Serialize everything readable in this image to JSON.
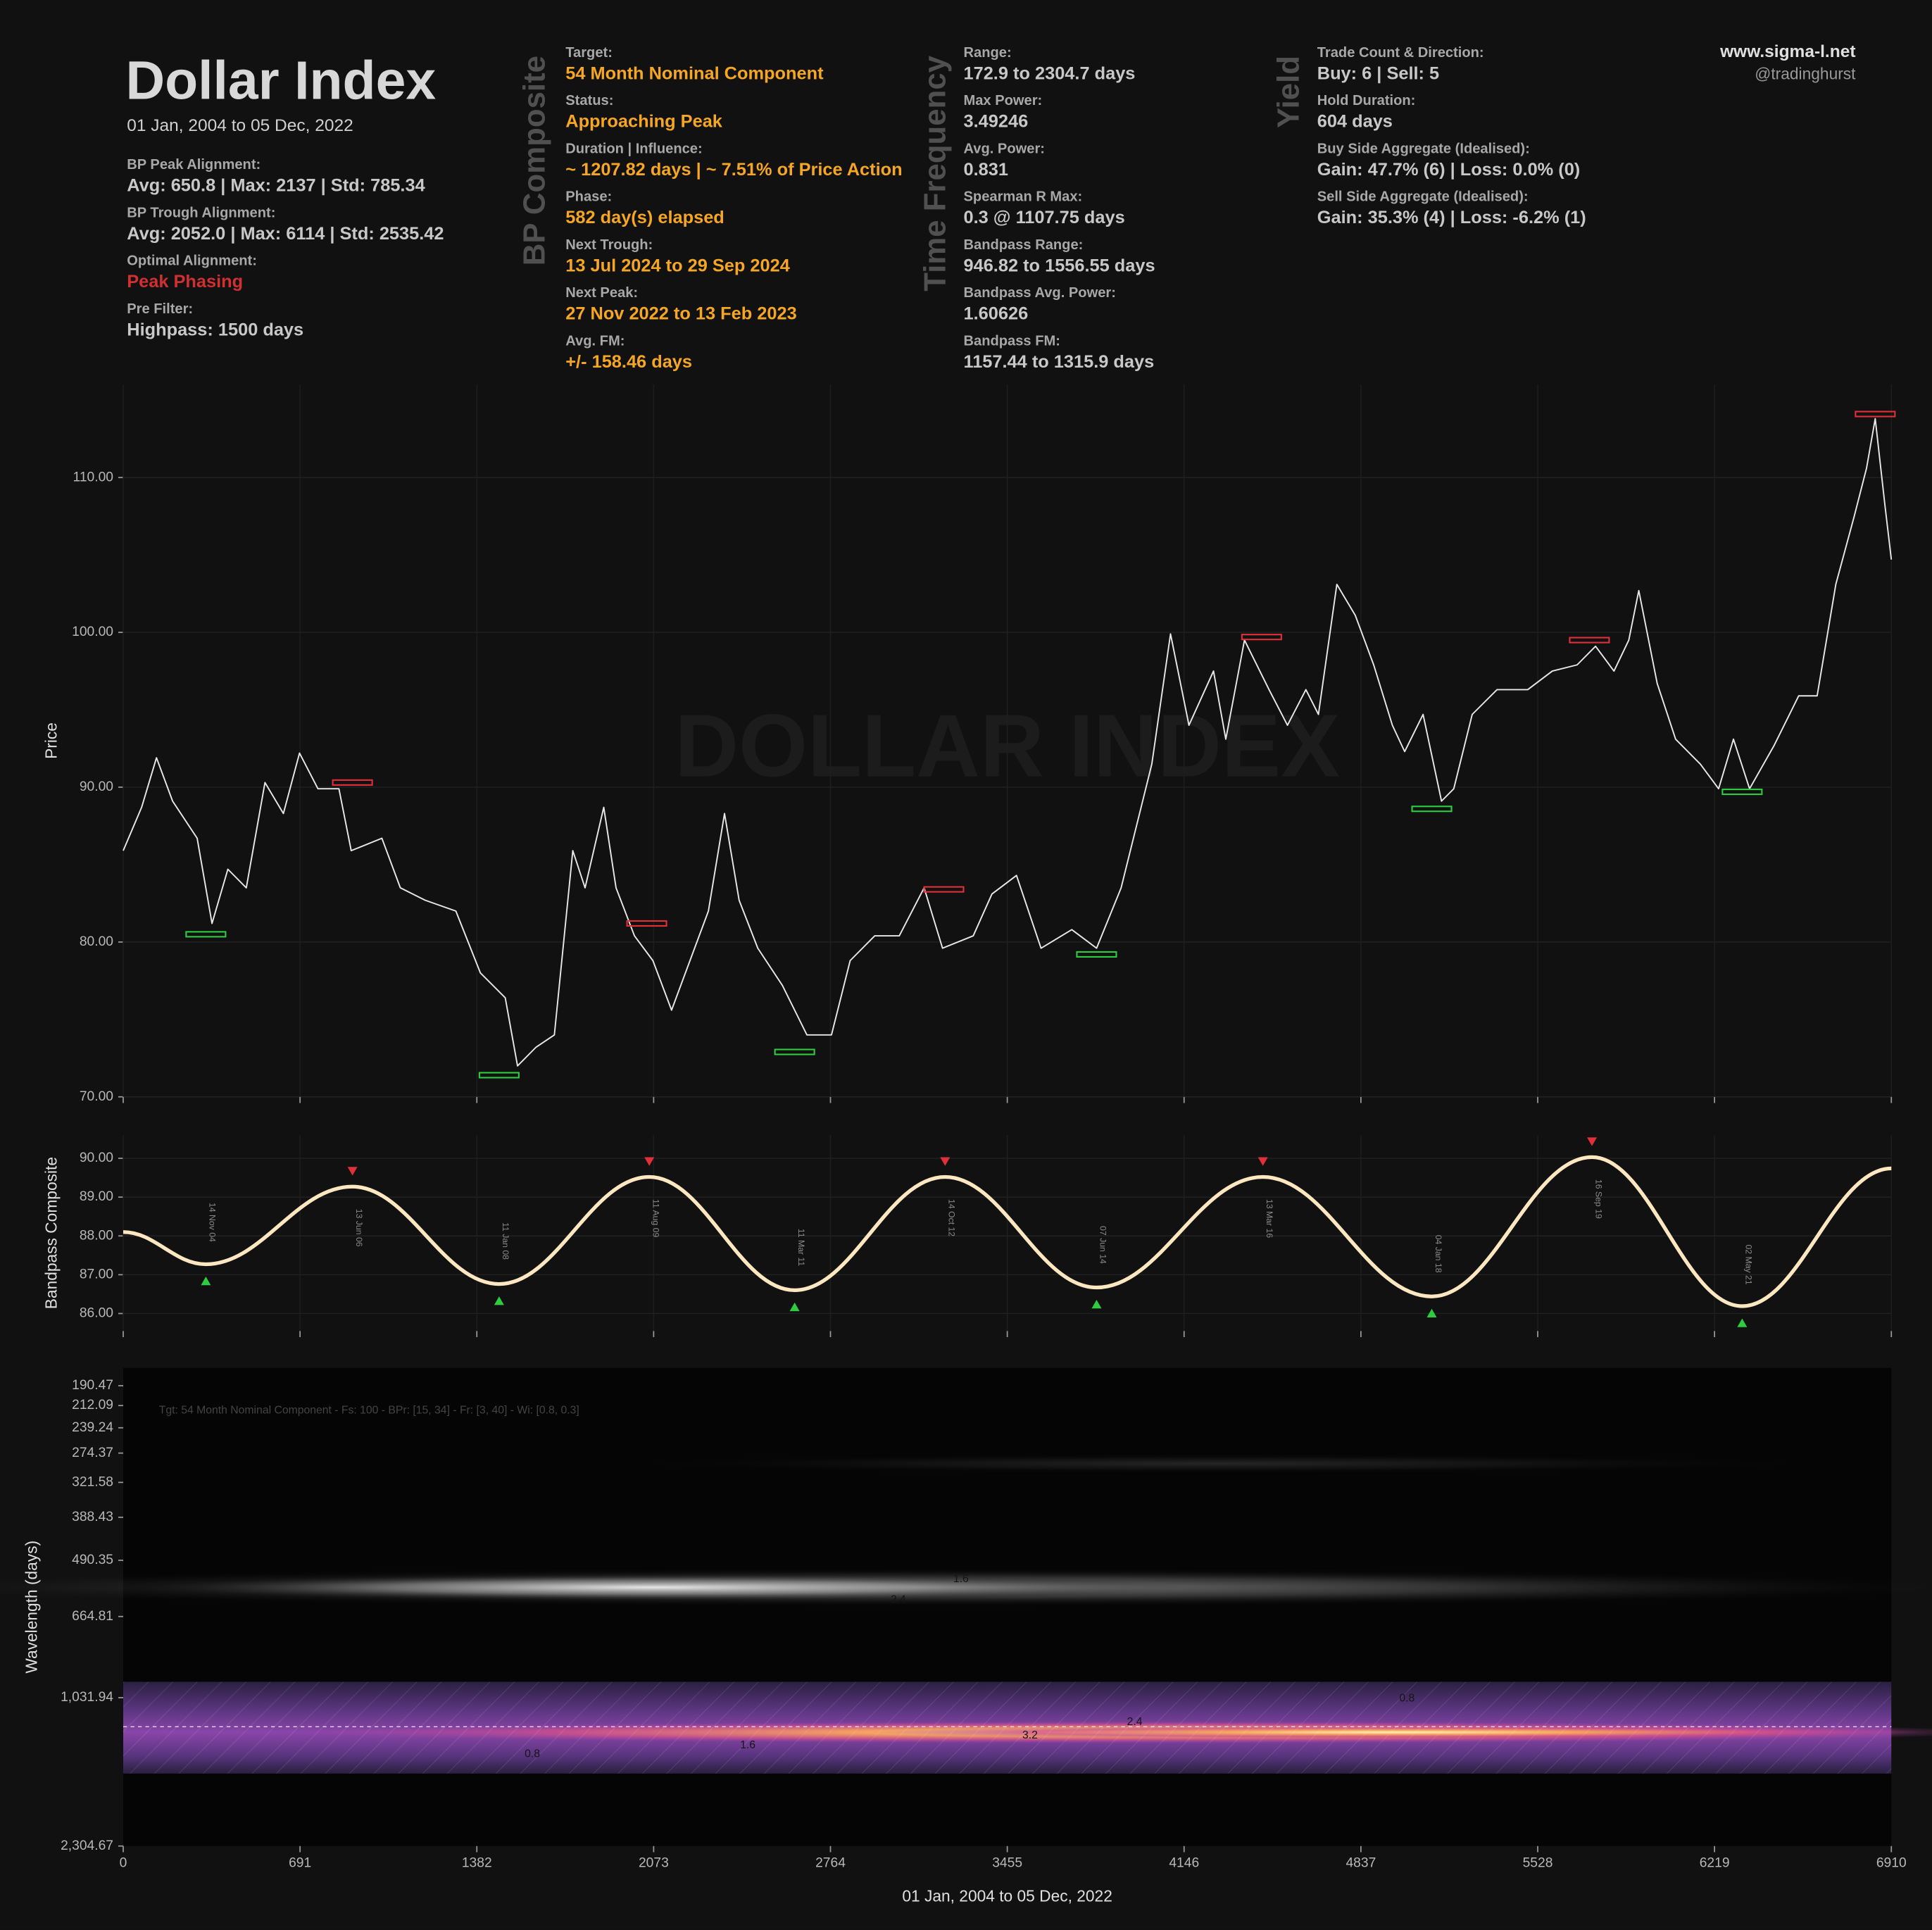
{
  "header": {
    "title": "Dollar Index",
    "subtitle": "01 Jan, 2004 to 05 Dec, 2022",
    "site": "www.sigma-l.net",
    "handle": "@tradinghurst"
  },
  "panels": [
    {
      "value_color": "#c8c8c8",
      "items": [
        {
          "label": "BP Peak Alignment:",
          "value": "Avg: 650.8 | Max: 2137 | Std: 785.34"
        },
        {
          "label": "BP Trough Alignment:",
          "value": "Avg: 2052.0 | Max: 6114 | Std: 2535.42"
        },
        {
          "label": "Optimal Alignment:",
          "value": "Peak Phasing",
          "color": "#d0302f"
        },
        {
          "label": "Pre Filter:",
          "value": "Highpass: 1500 days"
        }
      ]
    },
    {
      "heading": "BP Composite",
      "value_color": "#f5a623",
      "items": [
        {
          "label": "Target:",
          "value": "54 Month Nominal Component"
        },
        {
          "label": "Status:",
          "value": "Approaching Peak"
        },
        {
          "label": "Duration | Influence:",
          "value": "~ 1207.82 days | ~ 7.51% of Price Action"
        },
        {
          "label": "Phase:",
          "value": "582 day(s) elapsed"
        },
        {
          "label": "Next Trough:",
          "value": "13 Jul 2024 to 29 Sep 2024"
        },
        {
          "label": "Next Peak:",
          "value": "27 Nov 2022 to 13 Feb 2023"
        },
        {
          "label": "Avg. FM:",
          "value": "+/- 158.46 days"
        }
      ]
    },
    {
      "heading": "Time Frequency",
      "value_color": "#c8c8c8",
      "items": [
        {
          "label": "Range:",
          "value": "172.9 to 2304.7 days"
        },
        {
          "label": "Max Power:",
          "value": "3.49246"
        },
        {
          "label": "Avg. Power:",
          "value": "0.831"
        },
        {
          "label": "Spearman R Max:",
          "value": "0.3 @ 1107.75 days"
        },
        {
          "label": "Bandpass Range:",
          "value": "946.82 to 1556.55 days"
        },
        {
          "label": "Bandpass Avg. Power:",
          "value": "1.60626"
        },
        {
          "label": "Bandpass FM:",
          "value": "1157.44 to 1315.9 days"
        }
      ]
    },
    {
      "heading": "Yield",
      "value_color": "#c8c8c8",
      "items": [
        {
          "label": "Trade Count & Direction:",
          "value": "Buy: 6 | Sell: 5"
        },
        {
          "label": "Hold Duration:",
          "value": "604 days"
        },
        {
          "label": "Buy Side Aggregate (Idealised):",
          "value": "Gain: 47.7% (6) | Loss: 0.0% (0)"
        },
        {
          "label": "Sell Side Aggregate (Idealised):",
          "value": "Gain: 35.3% (4) | Loss: -6.2% (1)"
        }
      ]
    }
  ],
  "chart_data": [
    {
      "type": "line",
      "y_label": "Price",
      "watermark": "DOLLAR INDEX",
      "x": [
        0,
        72,
        130,
        193,
        289,
        347,
        409,
        481,
        554,
        626,
        689,
        761,
        843,
        891,
        1011,
        1083,
        1180,
        1300,
        1396,
        1493,
        1541,
        1613,
        1685,
        1757,
        1805,
        1878,
        1926,
        1998,
        2070,
        2143,
        2215,
        2287,
        2350,
        2407,
        2480,
        2576,
        2672,
        2768,
        2841,
        2937,
        3033,
        3130,
        3202,
        3322,
        3395,
        3491,
        3587,
        3707,
        3804,
        3900,
        3948,
        4020,
        4093,
        4165,
        4261,
        4309,
        4382,
        4478,
        4550,
        4622,
        4671,
        4743,
        4815,
        4887,
        4960,
        5008,
        5080,
        5152,
        5200,
        5272,
        5369,
        5489,
        5585,
        5682,
        5754,
        5826,
        5884,
        5923,
        5995,
        6067,
        6163,
        6235,
        6293,
        6356,
        6452,
        6548,
        6620,
        6693,
        6765,
        6813,
        6847,
        6885,
        6910
      ],
      "series": [
        {
          "color": "#e8e8e8",
          "values": [
            85.9,
            88.7,
            91.9,
            89.1,
            86.7,
            81.2,
            84.7,
            83.5,
            90.3,
            88.3,
            92.2,
            89.9,
            89.9,
            85.9,
            86.7,
            83.5,
            82.7,
            82.0,
            78.0,
            76.4,
            72.0,
            73.2,
            74.0,
            85.9,
            83.5,
            88.7,
            83.5,
            80.4,
            78.8,
            75.6,
            78.8,
            82.0,
            88.3,
            82.7,
            79.6,
            77.2,
            74.0,
            74.0,
            78.8,
            80.4,
            80.4,
            83.5,
            79.6,
            80.4,
            83.1,
            84.3,
            79.6,
            80.8,
            79.6,
            83.5,
            86.7,
            91.5,
            99.9,
            94.0,
            97.5,
            93.1,
            99.5,
            96.3,
            94.0,
            96.3,
            94.7,
            103.1,
            101.1,
            97.9,
            94.0,
            92.3,
            94.7,
            89.1,
            89.9,
            94.7,
            96.3,
            96.3,
            97.5,
            97.9,
            99.1,
            97.5,
            99.5,
            102.7,
            96.7,
            93.1,
            91.5,
            89.9,
            93.1,
            89.9,
            92.7,
            95.9,
            95.9,
            103.1,
            107.5,
            110.6,
            113.8,
            108.2,
            104.7
          ]
        }
      ],
      "troughs": {
        "color": "#2ecc40",
        "x": [
          323,
          1469,
          2624,
          3804,
          5114,
          6327
        ],
        "values": [
          80.5,
          71.4,
          72.9,
          79.2,
          88.6,
          89.7
        ]
      },
      "peaks": {
        "color": "#e0303a",
        "x": [
          896,
          2046,
          3207,
          4449,
          5730,
          6847
        ],
        "values": [
          90.3,
          81.2,
          83.4,
          99.7,
          99.5,
          114.1
        ]
      },
      "xlim": [
        0,
        6910
      ],
      "ylim": [
        70,
        116
      ],
      "yticks": [
        {
          "value": 70,
          "label": "70.00"
        },
        {
          "value": 80,
          "label": "80.00"
        },
        {
          "value": 90,
          "label": "90.00"
        },
        {
          "value": 100,
          "label": "100.00"
        },
        {
          "value": 110,
          "label": "110.00"
        }
      ],
      "grid": true
    },
    {
      "type": "line",
      "y_label": "Bandpass Composite",
      "x": [
        0,
        323,
        896,
        1469,
        2056,
        2624,
        3212,
        3804,
        4454,
        5114,
        5740,
        6327,
        6910
      ],
      "series": [
        {
          "color": "#fde7c0",
          "values": [
            88.1,
            87.27,
            89.27,
            86.76,
            89.52,
            86.6,
            89.52,
            86.67,
            89.52,
            86.44,
            90.03,
            86.19,
            89.74
          ]
        }
      ],
      "point_labels": [
        null,
        "14 Nov 04",
        "13 Jun 06",
        "11 Jan 08",
        "11 Aug 09",
        "11 Mar 11",
        "14 Oct 12",
        "07 Jun 14",
        "13 Mar 16",
        "04 Jan 18",
        "16 Sep 19",
        "02 May 21",
        null
      ],
      "peak_color": "#e0303a",
      "trough_color": "#2ecc40",
      "xlim": [
        0,
        6910
      ],
      "ylim": [
        85.55,
        90.6
      ],
      "yticks": [
        {
          "value": 86,
          "label": "86.00"
        },
        {
          "value": 87,
          "label": "87.00"
        },
        {
          "value": 88,
          "label": "88.00"
        },
        {
          "value": 89,
          "label": "89.00"
        },
        {
          "value": 90,
          "label": "90.00"
        }
      ],
      "grid": true
    },
    {
      "type": "spectrogram",
      "y_label": "Wavelength (days)",
      "x_label": "01 Jan, 2004 to 05 Dec, 2022",
      "subtitle": "Tgt: 54 Month Nominal Component - Fs: 100 - BPr: [15, 34] - Fr: [3, 40] - Wi: [0.8, 0.3]",
      "log_scale": true,
      "y_inverted": true,
      "target_wavelength": 1207.82,
      "bandpass_range": [
        946.82,
        1556.55
      ],
      "annotations": [
        {
          "text": "1.6",
          "x": 3274,
          "y": 543
        },
        {
          "text": "2.4",
          "x": 3029,
          "y": 608
        },
        {
          "text": "0.8",
          "x": 5017,
          "y": 1038
        },
        {
          "text": "2.4",
          "x": 3953,
          "y": 1178
        },
        {
          "text": "3.2",
          "x": 3544,
          "y": 1268
        },
        {
          "text": "1.6",
          "x": 2441,
          "y": 1337
        },
        {
          "text": "0.8",
          "x": 1599,
          "y": 1402
        }
      ],
      "xlim": [
        0,
        6910
      ],
      "ylim": [
        173,
        2304.67
      ],
      "xticks": [
        0,
        691,
        1382,
        2073,
        2764,
        3455,
        4146,
        4837,
        5528,
        6219,
        6910
      ],
      "yticks": [
        190.47,
        212.09,
        239.24,
        274.37,
        321.58,
        388.43,
        490.35,
        664.81,
        {
          "value": 1031.94,
          "label": "1,031.94"
        },
        {
          "value": 2304.67,
          "label": "2,304.67"
        }
      ],
      "grid": false
    }
  ]
}
